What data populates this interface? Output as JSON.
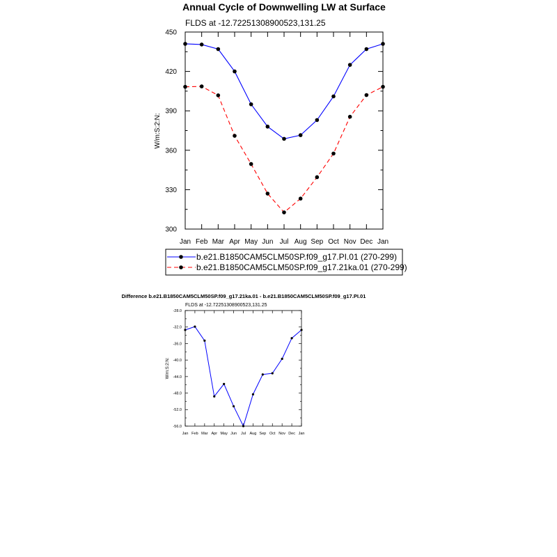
{
  "chart_data": [
    {
      "type": "line",
      "title": "Annual Cycle of Downwelling LW at Surface",
      "subtitle": "FLDS at -12.72251308900523,131.25",
      "xlabel": "",
      "ylabel": "W/m:S:2:N:",
      "categories": [
        "Jan",
        "Feb",
        "Mar",
        "Apr",
        "May",
        "Jun",
        "Jul",
        "Aug",
        "Sep",
        "Oct",
        "Nov",
        "Dec",
        "Jan"
      ],
      "ylim": [
        300,
        450
      ],
      "yticks": [
        300,
        330,
        360,
        390,
        420,
        450
      ],
      "grid": false,
      "legend_position": "bottom",
      "series": [
        {
          "name": "b.e21.B1850CAM5CLM50SP.f09_g17.PI.01 (270-299)",
          "color": "#0000ff",
          "dash": "solid",
          "values": [
            441,
            440.5,
            437,
            420,
            395,
            378,
            368.7,
            371.5,
            383,
            401,
            425,
            437,
            441
          ]
        },
        {
          "name": "b.e21.B1850CAM5CLM50SP.f09_g17.21ka.01 (270-299)",
          "color": "#ff0000",
          "dash": "dashed",
          "values": [
            408.3,
            408.6,
            401.8,
            371,
            349.5,
            327,
            312.7,
            323.2,
            339.5,
            357.5,
            385.5,
            402,
            408.3
          ]
        }
      ]
    },
    {
      "type": "line",
      "title": "Difference b.e21.B1850CAM5CLM50SP.f09_g17.21ka.01 - b.e21.B1850CAM5CLM50SP.f09_g17.PI.01",
      "subtitle": "FLDS at -12.72251308900523,131.25",
      "xlabel": "",
      "ylabel": "W/m:S:2:N:",
      "categories": [
        "Jan",
        "Feb",
        "Mar",
        "Apr",
        "May",
        "Jun",
        "Jul",
        "Aug",
        "Sep",
        "Oct",
        "Nov",
        "Dec",
        "Jan"
      ],
      "ylim": [
        -56,
        -28
      ],
      "yticks": [
        -56.0,
        -52.0,
        -48.0,
        -44.0,
        -40.0,
        -36.0,
        -32.0,
        -28.0
      ],
      "ytick_labels": [
        "-56.0",
        "-52.0",
        "-48.0",
        "-44.0",
        "-40.0",
        "-36.0",
        "-32.0",
        "-28.0"
      ],
      "grid": false,
      "series": [
        {
          "color": "#0000ff",
          "values": [
            -32.7,
            -31.9,
            -35.3,
            -48.8,
            -45.8,
            -51.2,
            -56.0,
            -48.3,
            -43.5,
            -43.2,
            -39.7,
            -34.7,
            -32.7
          ]
        }
      ]
    }
  ]
}
